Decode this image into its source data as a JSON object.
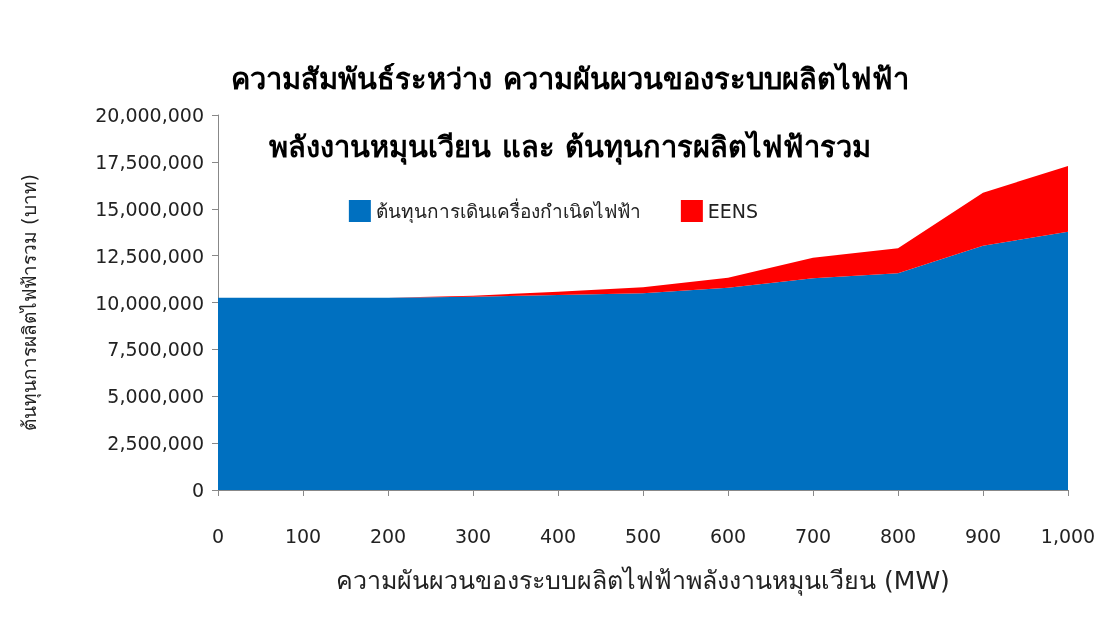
{
  "chart_data": {
    "type": "area",
    "title": "ความสัมพันธ์ระหว่าง ความผันผวนของระบบผลิตไฟฟ้า\nพลังงานหมุนเวียน และ ต้นทุนการผลิตไฟฟ้ารวม",
    "xlabel": "ความผันผวนของระบบผลิตไฟฟ้าพลังงานหมุนเวียน (MW)",
    "ylabel": "ต้นทุนการผลิตไฟฟ้ารวม (บาท)",
    "x": [
      0,
      100,
      200,
      300,
      400,
      500,
      600,
      700,
      800,
      900,
      1000
    ],
    "stacked": true,
    "series": [
      {
        "name": "ต้นทุนการเดินเครื่องกำเนิดไฟฟ้า",
        "color": "#0070c0",
        "values": [
          10260000,
          10260000,
          10260000,
          10310000,
          10400000,
          10490000,
          10790000,
          11290000,
          11560000,
          13030000,
          13780000
        ]
      },
      {
        "name": "EENS",
        "color": "#ff0000",
        "values": [
          0,
          0,
          0,
          50000,
          180000,
          320000,
          530000,
          1100000,
          1330000,
          2830000,
          3500000
        ]
      }
    ],
    "xlim": [
      0,
      1000
    ],
    "xticks": [
      0,
      100,
      200,
      300,
      400,
      500,
      600,
      700,
      800,
      900,
      {
        "value": 1000,
        "label": "1,000"
      }
    ],
    "ylim": [
      0,
      20000000
    ],
    "yticks": [
      0,
      {
        "value": 2500000,
        "label": "2,500,000"
      },
      {
        "value": 5000000,
        "label": "5,000,000"
      },
      {
        "value": 7500000,
        "label": "7,500,000"
      },
      {
        "value": 10000000,
        "label": "10,000,000"
      },
      {
        "value": 12500000,
        "label": "12,500,000"
      },
      {
        "value": 15000000,
        "label": "15,000,000"
      },
      {
        "value": 17500000,
        "label": "17,500,000"
      },
      {
        "value": 20000000,
        "label": "20,000,000"
      }
    ],
    "grid": false,
    "legend": "top"
  }
}
